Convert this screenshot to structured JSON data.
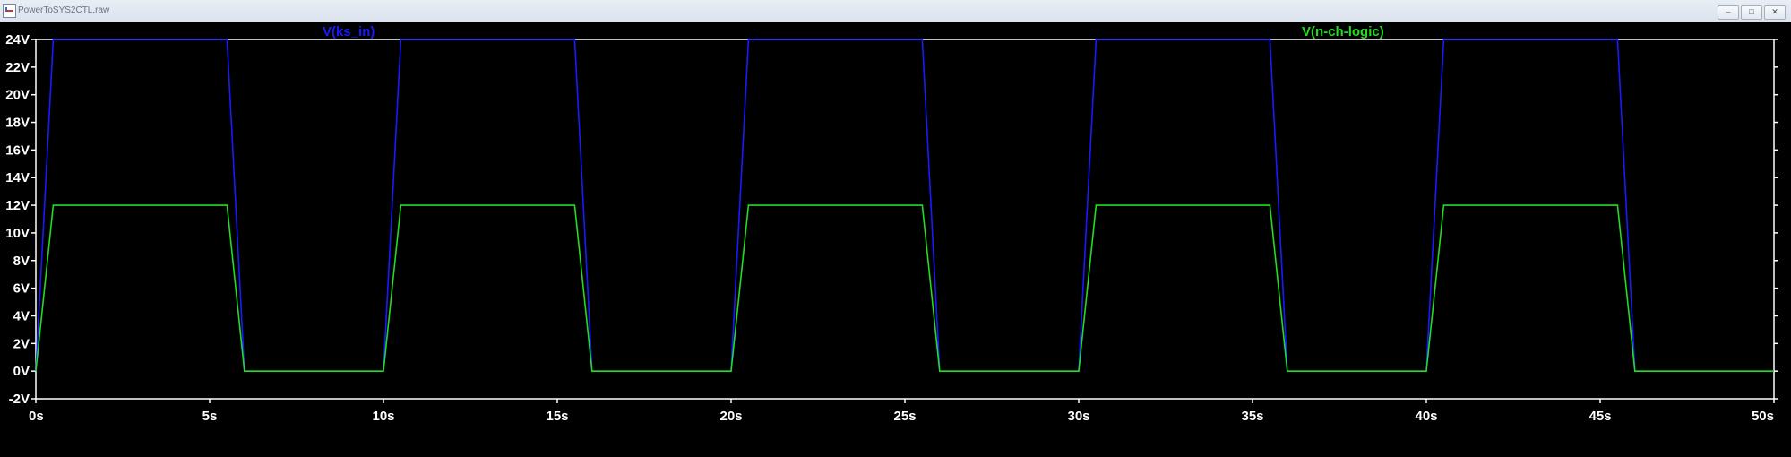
{
  "window": {
    "title": "PowerToSYS2CTL.raw",
    "minimize_icon": "minimize-icon",
    "restore_icon": "restore-icon",
    "close_icon": "close-icon"
  },
  "colors": {
    "background": "#000000",
    "axis": "#ffffff",
    "series_ks_in": "#1a1aff",
    "series_n_ch_logic": "#22dd22"
  },
  "chart_data": {
    "type": "line",
    "title": "",
    "xlabel": "",
    "ylabel": "",
    "xlim": [
      0,
      50
    ],
    "ylim": [
      -2,
      24
    ],
    "grid": false,
    "x_ticks": [
      "0s",
      "5s",
      "10s",
      "15s",
      "20s",
      "25s",
      "30s",
      "35s",
      "40s",
      "45s",
      "50s"
    ],
    "x_tick_values": [
      0,
      5,
      10,
      15,
      20,
      25,
      30,
      35,
      40,
      45,
      50
    ],
    "y_ticks": [
      "-2V",
      "0V",
      "2V",
      "4V",
      "6V",
      "8V",
      "10V",
      "12V",
      "14V",
      "16V",
      "18V",
      "20V",
      "22V",
      "24V"
    ],
    "y_tick_values": [
      -2,
      0,
      2,
      4,
      6,
      8,
      10,
      12,
      14,
      16,
      18,
      20,
      22,
      24
    ],
    "series": [
      {
        "name": "V(ks_in)",
        "color": "#1a1aff",
        "x": [
          0,
          0.5,
          5.5,
          6,
          10,
          10.5,
          15.5,
          16,
          20,
          20.5,
          25.5,
          26,
          30,
          30.5,
          35.5,
          36,
          40,
          40.5,
          45.5,
          46,
          50
        ],
        "y": [
          0,
          24,
          24,
          0,
          0,
          24,
          24,
          0,
          0,
          24,
          24,
          0,
          0,
          24,
          24,
          0,
          0,
          24,
          24,
          0,
          0
        ]
      },
      {
        "name": "V(n-ch-logic)",
        "color": "#22dd22",
        "x": [
          0,
          0.5,
          5.5,
          6,
          10,
          10.5,
          15.5,
          16,
          20,
          20.5,
          25.5,
          26,
          30,
          30.5,
          35.5,
          36,
          40,
          40.5,
          45.5,
          46,
          50
        ],
        "y": [
          0,
          12,
          12,
          0,
          0,
          12,
          12,
          0,
          0,
          12,
          12,
          0,
          0,
          12,
          12,
          0,
          0,
          12,
          12,
          0,
          0
        ]
      }
    ]
  }
}
